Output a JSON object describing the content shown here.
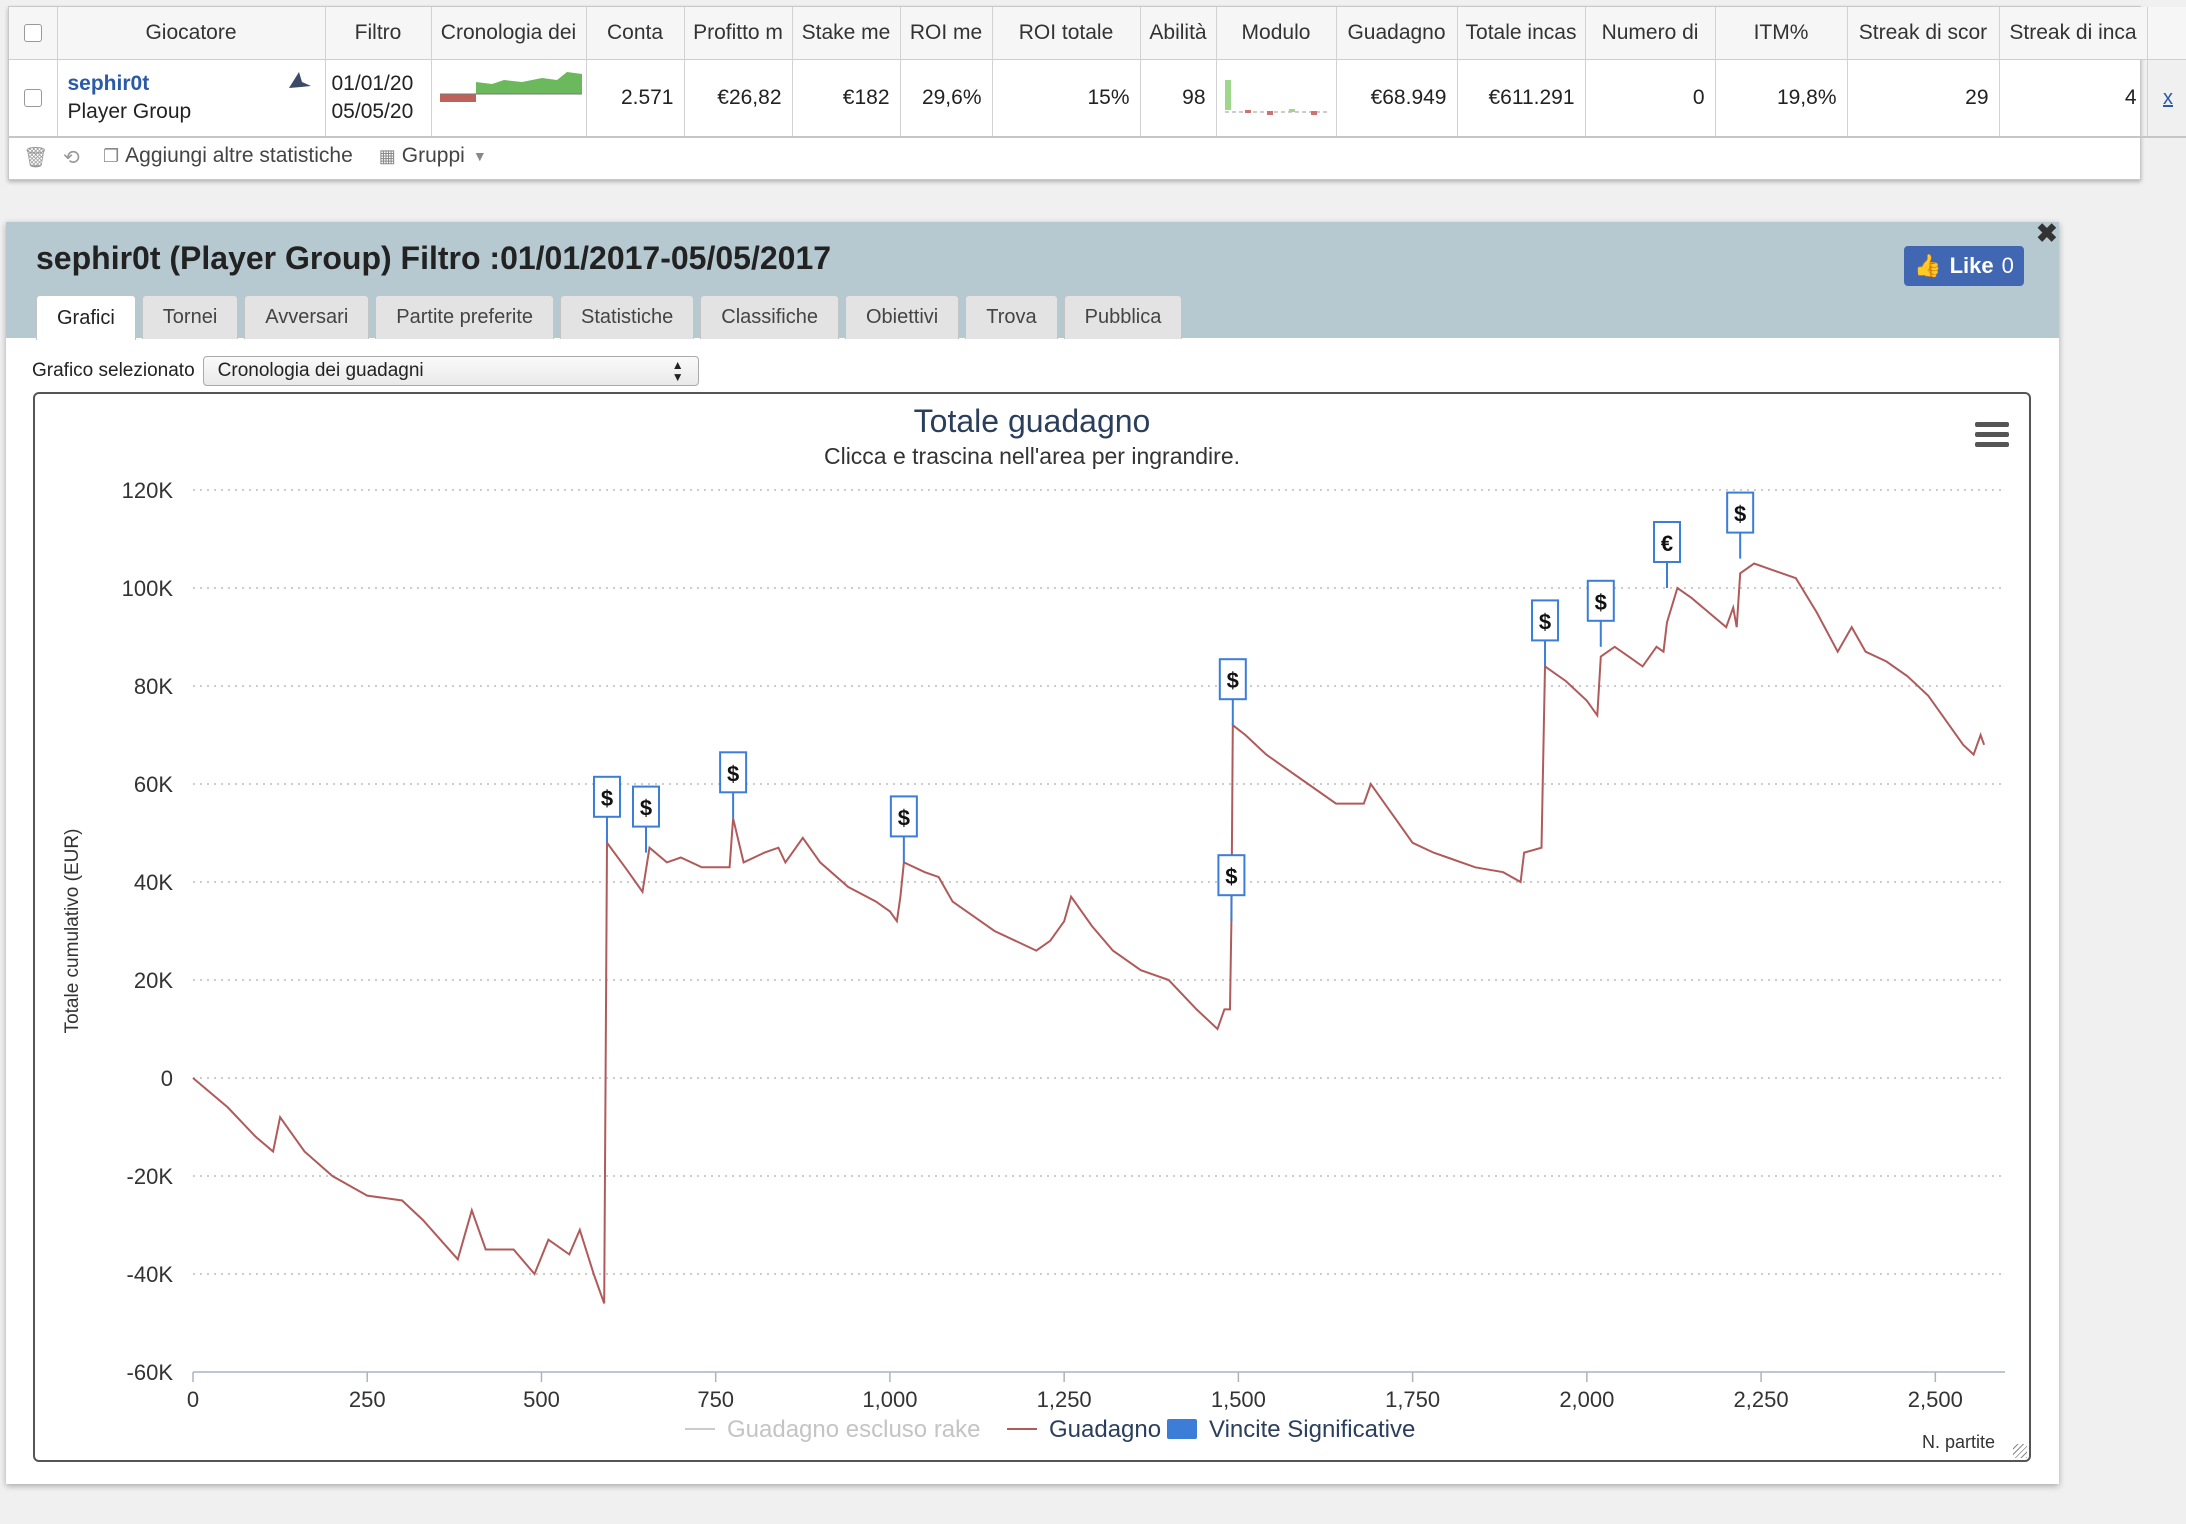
{
  "stats": {
    "headers": [
      "Giocatore",
      "Filtro",
      "Cronologia dei",
      "Conta",
      "Profitto m",
      "Stake me",
      "ROI me",
      "ROI totale",
      "Abilità",
      "Modulo",
      "Guadagno",
      "Totale incas",
      "Numero di",
      "ITM%",
      "Streak di scor",
      "Streak di inca"
    ],
    "row": {
      "player_name": "sephir0t",
      "player_group": "Player Group",
      "filter_from": "01/01/20",
      "filter_to": "05/05/20",
      "count": "2.571",
      "avg_profit": "€26,82",
      "avg_stake": "€182",
      "avg_roi": "29,6%",
      "total_roi": "15%",
      "ability": "98",
      "winnings": "€68.949",
      "total_cashed": "€611.291",
      "number": "0",
      "itm": "19,8%",
      "streak_loss": "29",
      "streak_cash": "4",
      "remove": "x"
    },
    "toolbar": {
      "add_stats": "Aggiungi altre statistiche",
      "groups": "Gruppi"
    }
  },
  "panel": {
    "title": "sephir0t (Player Group) Filtro :01/01/2017-05/05/2017",
    "like_label": "Like",
    "like_count": "0",
    "tabs": [
      {
        "label": "Grafici",
        "active": true
      },
      {
        "label": "Tornei"
      },
      {
        "label": "Avversari"
      },
      {
        "label": "Partite preferite"
      },
      {
        "label": "Statistiche"
      },
      {
        "label": "Classifiche"
      },
      {
        "label": "Obiettivi"
      },
      {
        "label": "Trova"
      },
      {
        "label": "Pubblica"
      }
    ],
    "chart_select_label": "Grafico selezionato",
    "chart_select_value": "Cronologia dei guadagni"
  },
  "chart_data": {
    "type": "line",
    "title": "Totale guadagno",
    "subtitle": "Clicca e trascina nell'area per ingrandire.",
    "ylabel": "Totale cumulativo (EUR)",
    "xlabel": "N. partite",
    "xlim": [
      0,
      2600
    ],
    "ylim": [
      -60000,
      120000
    ],
    "x_ticks": [
      "0",
      "250",
      "500",
      "750",
      "1,000",
      "1,250",
      "1,500",
      "1,750",
      "2,000",
      "2,250",
      "2,500"
    ],
    "y_ticks": [
      "120K",
      "100K",
      "80K",
      "60K",
      "40K",
      "20K",
      "0",
      "-20K",
      "-40K",
      "-60K"
    ],
    "grid": "horizontal-dotted",
    "legend": [
      {
        "name": "Guadagno escluso rake",
        "color": "#cccccc"
      },
      {
        "name": "Guadagno",
        "color": "#b05b5b"
      },
      {
        "name": "Vincite Significative",
        "color": "#3c7dd8"
      }
    ],
    "series": [
      {
        "name": "Guadagno",
        "color": "#b05b5b",
        "points": [
          [
            0,
            0
          ],
          [
            50,
            -6000
          ],
          [
            90,
            -12000
          ],
          [
            115,
            -15000
          ],
          [
            125,
            -8000
          ],
          [
            160,
            -15000
          ],
          [
            200,
            -20000
          ],
          [
            250,
            -24000
          ],
          [
            300,
            -25000
          ],
          [
            330,
            -29000
          ],
          [
            380,
            -37000
          ],
          [
            400,
            -27000
          ],
          [
            420,
            -35000
          ],
          [
            460,
            -35000
          ],
          [
            490,
            -40000
          ],
          [
            510,
            -33000
          ],
          [
            540,
            -36000
          ],
          [
            555,
            -31000
          ],
          [
            575,
            -40000
          ],
          [
            590,
            -46000
          ],
          [
            594,
            48000
          ],
          [
            620,
            43000
          ],
          [
            645,
            38000
          ],
          [
            655,
            47000
          ],
          [
            680,
            44000
          ],
          [
            700,
            45000
          ],
          [
            730,
            43000
          ],
          [
            770,
            43000
          ],
          [
            775,
            53000
          ],
          [
            790,
            44000
          ],
          [
            820,
            46000
          ],
          [
            840,
            47000
          ],
          [
            850,
            44000
          ],
          [
            875,
            49000
          ],
          [
            900,
            44000
          ],
          [
            940,
            39000
          ],
          [
            980,
            36000
          ],
          [
            1000,
            34000
          ],
          [
            1010,
            32000
          ],
          [
            1015,
            37000
          ],
          [
            1020,
            44000
          ],
          [
            1050,
            42000
          ],
          [
            1070,
            41000
          ],
          [
            1090,
            36000
          ],
          [
            1120,
            33000
          ],
          [
            1150,
            30000
          ],
          [
            1180,
            28000
          ],
          [
            1210,
            26000
          ],
          [
            1230,
            28000
          ],
          [
            1250,
            32000
          ],
          [
            1260,
            37000
          ],
          [
            1290,
            31000
          ],
          [
            1320,
            26000
          ],
          [
            1360,
            22000
          ],
          [
            1400,
            20000
          ],
          [
            1440,
            14000
          ],
          [
            1470,
            10000
          ],
          [
            1480,
            14000
          ],
          [
            1488,
            14000
          ],
          [
            1490,
            32000
          ],
          [
            1492,
            72000
          ],
          [
            1510,
            70000
          ],
          [
            1540,
            66000
          ],
          [
            1560,
            64000
          ],
          [
            1600,
            60000
          ],
          [
            1640,
            56000
          ],
          [
            1680,
            56000
          ],
          [
            1690,
            60000
          ],
          [
            1720,
            54000
          ],
          [
            1750,
            48000
          ],
          [
            1780,
            46000
          ],
          [
            1800,
            45000
          ],
          [
            1840,
            43000
          ],
          [
            1880,
            42000
          ],
          [
            1905,
            40000
          ],
          [
            1910,
            46000
          ],
          [
            1935,
            47000
          ],
          [
            1940,
            84000
          ],
          [
            1970,
            81000
          ],
          [
            2000,
            77000
          ],
          [
            2015,
            74000
          ],
          [
            2020,
            86000
          ],
          [
            2040,
            88000
          ],
          [
            2060,
            86000
          ],
          [
            2080,
            84000
          ],
          [
            2100,
            88000
          ],
          [
            2110,
            87000
          ],
          [
            2115,
            93000
          ],
          [
            2130,
            100000
          ],
          [
            2150,
            98000
          ],
          [
            2175,
            95000
          ],
          [
            2200,
            92000
          ],
          [
            2210,
            96000
          ],
          [
            2215,
            92000
          ],
          [
            2220,
            103000
          ],
          [
            2240,
            105000
          ],
          [
            2260,
            104000
          ],
          [
            2300,
            102000
          ],
          [
            2330,
            95000
          ],
          [
            2360,
            87000
          ],
          [
            2380,
            92000
          ],
          [
            2400,
            87000
          ],
          [
            2430,
            85000
          ],
          [
            2460,
            82000
          ],
          [
            2490,
            78000
          ],
          [
            2510,
            74000
          ],
          [
            2540,
            68000
          ],
          [
            2555,
            66000
          ],
          [
            2565,
            70000
          ],
          [
            2570,
            68000
          ]
        ]
      }
    ],
    "markers": [
      {
        "x": 594,
        "y": 48000,
        "label": "$"
      },
      {
        "x": 650,
        "y": 46000,
        "label": "$"
      },
      {
        "x": 775,
        "y": 53000,
        "label": "$"
      },
      {
        "x": 1020,
        "y": 44000,
        "label": "$"
      },
      {
        "x": 1490,
        "y": 32000,
        "label": "$"
      },
      {
        "x": 1492,
        "y": 72000,
        "label": "$"
      },
      {
        "x": 1940,
        "y": 84000,
        "label": "$"
      },
      {
        "x": 2020,
        "y": 88000,
        "label": "$"
      },
      {
        "x": 2115,
        "y": 100000,
        "label": "€"
      },
      {
        "x": 2220,
        "y": 106000,
        "label": "$"
      }
    ]
  }
}
